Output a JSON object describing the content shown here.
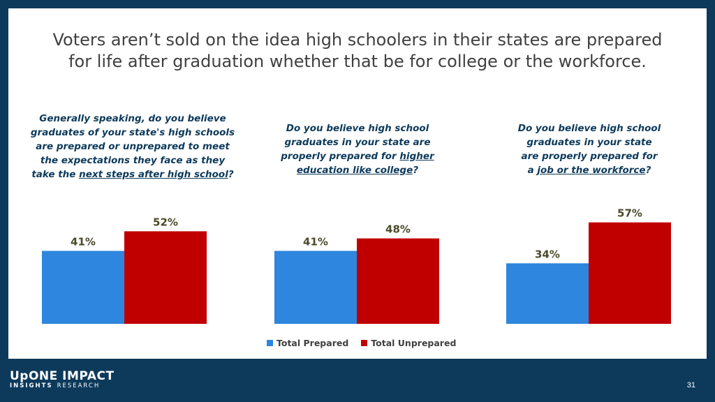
{
  "title": {
    "line1": "Voters aren’t sold on the idea high schoolers in their states are prepared",
    "line2": "for life after graduation whether that be for college or the workforce."
  },
  "questions": [
    {
      "lines": [
        "Generally speaking, do you believe",
        "graduates of your state's high schools",
        "are prepared or unprepared to meet",
        "the expectations they face as they"
      ],
      "last_prefix": "take the ",
      "last_underlined": "next steps after high school",
      "last_suffix": "?"
    },
    {
      "lines": [
        "Do you believe high school",
        "graduates in your state are"
      ],
      "line3_prefix": "properly prepared for ",
      "line3_underlined": "higher",
      "line4_underlined": "education like college",
      "line4_suffix": "?"
    },
    {
      "lines": [
        "Do you believe high school",
        "graduates in your state",
        "are properly prepared for"
      ],
      "last_prefix": "a ",
      "last_underlined": "job or the workforce",
      "last_suffix": "?"
    }
  ],
  "chart_data": [
    {
      "type": "bar",
      "categories": [
        "Total Prepared",
        "Total Unprepared"
      ],
      "values": [
        41,
        52
      ],
      "labels": [
        "41%",
        "52%"
      ],
      "ylim": [
        0,
        100
      ]
    },
    {
      "type": "bar",
      "categories": [
        "Total Prepared",
        "Total Unprepared"
      ],
      "values": [
        41,
        48
      ],
      "labels": [
        "41%",
        "48%"
      ],
      "ylim": [
        0,
        100
      ]
    },
    {
      "type": "bar",
      "categories": [
        "Total Prepared",
        "Total Unprepared"
      ],
      "values": [
        34,
        57
      ],
      "labels": [
        "34%",
        "57%"
      ],
      "ylim": [
        0,
        100
      ]
    }
  ],
  "legend": {
    "prepared": "Total Prepared",
    "unprepared": "Total Unprepared"
  },
  "colors": {
    "prepared": "#2e86de",
    "unprepared": "#c00000",
    "label": "#4a4a2a",
    "background": "#0d3a5b"
  },
  "footer": {
    "logo_top": "UpONE IMPACT",
    "logo_bottom_left": "INSIGHTS",
    "logo_bottom_right": "RESEARCH",
    "page_number": "31"
  }
}
